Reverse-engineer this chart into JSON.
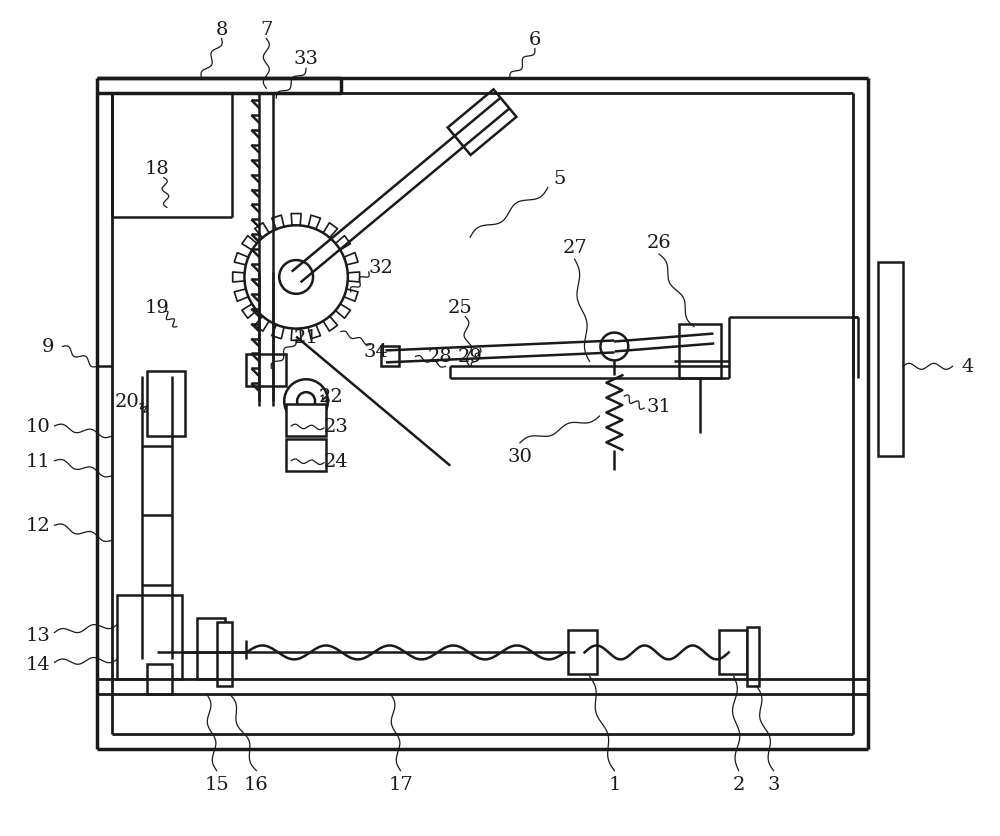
{
  "bg_color": "#ffffff",
  "lc": "#1a1a1a",
  "lw": 1.8,
  "fs": 14,
  "fig_w": 10.0,
  "fig_h": 8.37
}
